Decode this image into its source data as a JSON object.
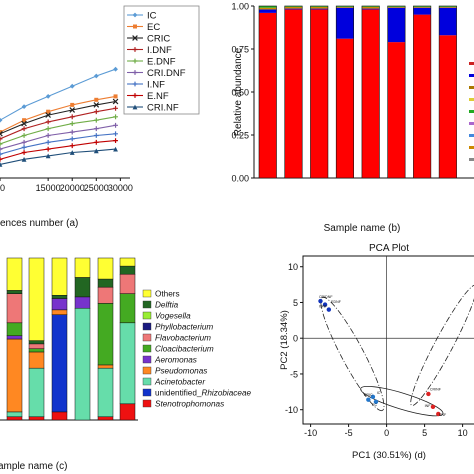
{
  "chart_data": [
    {
      "type": "line",
      "panel": "a",
      "xlabel": "ences number (a)",
      "x_ticks": [
        "0",
        "15000",
        "20000",
        "25000",
        "30000"
      ],
      "legend_position": "right",
      "series": [
        {
          "name": "IC",
          "color": "#5b9bd5",
          "marker": "diamond",
          "x": [
            0,
            5000,
            10000,
            15000,
            20000,
            25000,
            29000
          ],
          "y": [
            0.22,
            0.34,
            0.42,
            0.48,
            0.54,
            0.6,
            0.64
          ]
        },
        {
          "name": "EC",
          "color": "#ed7d31",
          "marker": "square",
          "x": [
            0,
            5000,
            10000,
            15000,
            20000,
            25000,
            29000
          ],
          "y": [
            0.18,
            0.27,
            0.34,
            0.39,
            0.43,
            0.46,
            0.48
          ]
        },
        {
          "name": "CRIC",
          "color": "#222222",
          "marker": "x",
          "x": [
            0,
            5000,
            10000,
            15000,
            20000,
            25000,
            29000
          ],
          "y": [
            0.17,
            0.26,
            0.32,
            0.37,
            0.4,
            0.43,
            0.45
          ]
        },
        {
          "name": "I.DNF",
          "color": "#b02020",
          "marker": "plus",
          "x": [
            0,
            5000,
            10000,
            15000,
            20000,
            25000,
            29000
          ],
          "y": [
            0.15,
            0.23,
            0.29,
            0.33,
            0.36,
            0.39,
            0.41
          ]
        },
        {
          "name": "E.DNF",
          "color": "#70ad47",
          "marker": "plus",
          "x": [
            0,
            5000,
            10000,
            15000,
            20000,
            25000,
            29000
          ],
          "y": [
            0.13,
            0.2,
            0.25,
            0.29,
            0.32,
            0.34,
            0.36
          ]
        },
        {
          "name": "CRI.DNF",
          "color": "#7f5fa8",
          "marker": "plus",
          "x": [
            0,
            5000,
            10000,
            15000,
            20000,
            25000,
            29000
          ],
          "y": [
            0.11,
            0.17,
            0.21,
            0.25,
            0.27,
            0.29,
            0.31
          ]
        },
        {
          "name": "I.NF",
          "color": "#4472c4",
          "marker": "plus",
          "x": [
            0,
            5000,
            10000,
            15000,
            20000,
            25000,
            29000
          ],
          "y": [
            0.09,
            0.14,
            0.18,
            0.21,
            0.23,
            0.25,
            0.26
          ]
        },
        {
          "name": "E.NF",
          "color": "#c00000",
          "marker": "plus",
          "x": [
            0,
            5000,
            10000,
            15000,
            20000,
            25000,
            29000
          ],
          "y": [
            0.07,
            0.11,
            0.15,
            0.17,
            0.19,
            0.21,
            0.22
          ]
        },
        {
          "name": "CRI.NF",
          "color": "#1f4e79",
          "marker": "triangle",
          "x": [
            0,
            5000,
            10000,
            15000,
            20000,
            25000,
            29000
          ],
          "y": [
            0.05,
            0.08,
            0.11,
            0.13,
            0.15,
            0.16,
            0.17
          ]
        }
      ]
    },
    {
      "type": "bar",
      "stacked": true,
      "panel": "b",
      "ylabel": "Relative abundance",
      "xlabel": "Sample name (b)",
      "ylim": [
        0,
        1
      ],
      "y_ticks": [
        "0.00",
        "0.25",
        "0.50",
        "0.75",
        "1.00"
      ],
      "bars": [
        {
          "segments": [
            0.96,
            0.02,
            0.01,
            0.01
          ]
        },
        {
          "segments": [
            0.98,
            0.005,
            0.01,
            0.005
          ]
        },
        {
          "segments": [
            0.98,
            0.005,
            0.01,
            0.005
          ]
        },
        {
          "segments": [
            0.81,
            0.18,
            0.005,
            0.005
          ]
        },
        {
          "segments": [
            0.98,
            0.005,
            0.01,
            0.005
          ]
        },
        {
          "segments": [
            0.79,
            0.2,
            0.005,
            0.005
          ]
        },
        {
          "segments": [
            0.95,
            0.04,
            0.005,
            0.005
          ]
        },
        {
          "segments": [
            0.83,
            0.16,
            0.005,
            0.005
          ]
        }
      ],
      "segment_colors": [
        "#ff0000",
        "#0000dd",
        "#cc8800",
        "#22aa22"
      ]
    },
    {
      "type": "bar",
      "stacked": true,
      "panel": "c",
      "xlabel": "ample name (c)",
      "legend_position": "right",
      "categories_order": [
        "Stenotrophomonas",
        "unidentified_Rhizobiaceae",
        "Acinetobacter",
        "Pseudomonas",
        "Aeromonas",
        "Cloacibacterium",
        "Flavobacterium",
        "Phyllobacterium",
        "Vogesella",
        "Delftia",
        "Others"
      ],
      "legend": [
        {
          "name": "Others",
          "color": "#ffff33"
        },
        {
          "name": "Delftia",
          "color": "#226622"
        },
        {
          "name": "Vogesella",
          "color": "#99ee33"
        },
        {
          "name": "Phyllobacterium",
          "color": "#1a1a80"
        },
        {
          "name": "Flavobacterium",
          "color": "#ee7777"
        },
        {
          "name": "Cloacibacterium",
          "color": "#44aa22"
        },
        {
          "name": "Aeromonas",
          "color": "#7733cc"
        },
        {
          "name": "Pseudomonas",
          "color": "#ff8822"
        },
        {
          "name": "Acinetobacter",
          "color": "#66ddaa"
        },
        {
          "name": "unidentified_Rhizobiaceae",
          "color": "#1133cc"
        },
        {
          "name": "Stenotrophomonas",
          "color": "#ee1111"
        }
      ],
      "bars": [
        {
          "values": [
            0.02,
            0.0,
            0.03,
            0.45,
            0.02,
            0.08,
            0.18,
            0.0,
            0.0,
            0.02,
            0.2
          ]
        },
        {
          "values": [
            0.02,
            0.0,
            0.3,
            0.1,
            0.0,
            0.02,
            0.03,
            0.0,
            0.0,
            0.02,
            0.51
          ]
        },
        {
          "values": [
            0.05,
            0.6,
            0.0,
            0.03,
            0.07,
            0.0,
            0.0,
            0.0,
            0.0,
            0.02,
            0.23
          ]
        },
        {
          "values": [
            0.0,
            0.0,
            0.69,
            0.0,
            0.07,
            0.0,
            0.0,
            0.0,
            0.0,
            0.12,
            0.12
          ]
        },
        {
          "values": [
            0.02,
            0.0,
            0.3,
            0.02,
            0.0,
            0.38,
            0.1,
            0.0,
            0.0,
            0.05,
            0.13
          ]
        },
        {
          "values": [
            0.1,
            0.0,
            0.5,
            0.0,
            0.0,
            0.18,
            0.12,
            0.0,
            0.0,
            0.05,
            0.05
          ]
        }
      ]
    },
    {
      "type": "scatter",
      "panel": "d",
      "title": "PCA Plot",
      "xlabel": "PC1 (30.51%) (d)",
      "ylabel": "PC2 (18.34%)",
      "xlim": [
        -11,
        11.5
      ],
      "ylim": [
        -12,
        11.5
      ],
      "x_ticks": [
        -10,
        -5,
        0,
        5,
        10
      ],
      "y_ticks": [
        10,
        5,
        0,
        -5,
        -10
      ],
      "point_labels": [
        "CRIDNF",
        "IDNF",
        "EDNF",
        "CRIC",
        "IC",
        "EC",
        "CRINF",
        "INF",
        "ENF"
      ],
      "points": [
        {
          "x": -8.7,
          "y": 5.2,
          "color": "#1133bb"
        },
        {
          "x": -8.1,
          "y": 4.7,
          "color": "#1133bb"
        },
        {
          "x": -7.6,
          "y": 4.0,
          "color": "#1133bb"
        },
        {
          "x": -2.4,
          "y": -8.6,
          "color": "#2277cc"
        },
        {
          "x": -1.8,
          "y": -8.2,
          "color": "#2277cc"
        },
        {
          "x": -1.4,
          "y": -8.9,
          "color": "#2277cc"
        },
        {
          "x": 5.5,
          "y": -7.8,
          "color": "#dd2222"
        },
        {
          "x": 6.1,
          "y": -9.6,
          "color": "#dd2222"
        },
        {
          "x": 6.8,
          "y": -10.6,
          "color": "#dd2222"
        }
      ]
    }
  ]
}
